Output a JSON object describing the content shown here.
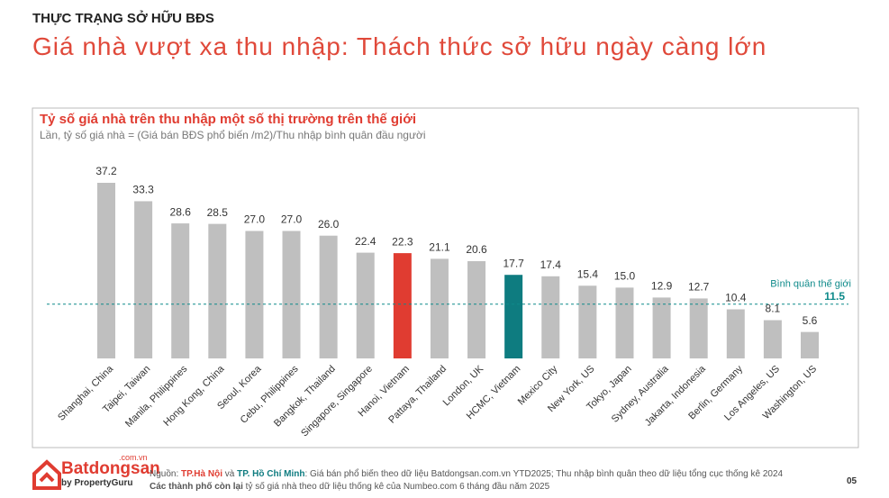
{
  "header": {
    "kicker": "THỰC TRẠNG SỞ HỮU BĐS",
    "title": "Giá nhà vượt xa thu nhập: Thách thức sở hữu ngày càng lớn"
  },
  "chart_data": {
    "type": "bar",
    "title": "Tỷ số giá nhà trên thu nhập một số thị trường trên thế giới",
    "subtitle": "Lần, tỷ số giá nhà = (Giá bán BĐS phổ biến /m2)/Thu nhập bình quân đầu người",
    "categories": [
      "Shanghai, China",
      "Taipei, Taiwan",
      "Manila, Philippines",
      "Hong Kong, China",
      "Seoul, Korea",
      "Cebu, Philippines",
      "Bangkok, Thailand",
      "Singapore, Singapore",
      "Hanoi, Vietnam",
      "Pattaya, Thailand",
      "London, UK",
      "HCMC,  Vietnam",
      "Mexico City",
      "New York, US",
      "Tokyo, Japan",
      "Sydney, Australia",
      "Jakarta, Indonesia",
      "Berlin, Germany",
      "Los Angeles, US",
      "Washington, US"
    ],
    "values": [
      37.2,
      33.3,
      28.6,
      28.5,
      27.0,
      27.0,
      26.0,
      22.4,
      22.3,
      21.1,
      20.6,
      17.7,
      17.4,
      15.4,
      15.0,
      12.9,
      12.7,
      10.4,
      8.1,
      5.6
    ],
    "value_labels": [
      "37.2",
      "33.3",
      "28.6",
      "28.5",
      "27.0",
      "27.0",
      "26.0",
      "22.4",
      "22.3",
      "21.1",
      "20.6",
      "17.7",
      "17.4",
      "15.4",
      "15.0",
      "12.9",
      "12.7",
      "10.4",
      "8.1",
      "5.6"
    ],
    "colors": [
      "#bfbfbf",
      "#bfbfbf",
      "#bfbfbf",
      "#bfbfbf",
      "#bfbfbf",
      "#bfbfbf",
      "#bfbfbf",
      "#bfbfbf",
      "#e03c31",
      "#bfbfbf",
      "#bfbfbf",
      "#0e7c80",
      "#bfbfbf",
      "#bfbfbf",
      "#bfbfbf",
      "#bfbfbf",
      "#bfbfbf",
      "#bfbfbf",
      "#bfbfbf",
      "#bfbfbf"
    ],
    "average": {
      "label": "Bình quân thế giới",
      "value": 11.5,
      "color": "#0e8a8a"
    }
  },
  "footer": {
    "logo": {
      "name": "Batdongsan",
      "domain": ".com.vn",
      "by": "by PropertyGuru"
    },
    "line1": [
      "Nguồn: ",
      "TP.Hà Nội",
      " và ",
      "TP. Hồ Chí Minh",
      ": Giá bán phổ biến theo dữ liệu Batdongsan.com.vn YTD2025; Thu nhập bình quân theo dữ liệu tổng cục thống kê 2024"
    ],
    "line2": [
      "Các thành phố còn lại",
      " tỷ số giá nhà theo dữ liệu thống kê của Numbeo.com 6 tháng đầu năm 2025"
    ],
    "page": "05"
  }
}
